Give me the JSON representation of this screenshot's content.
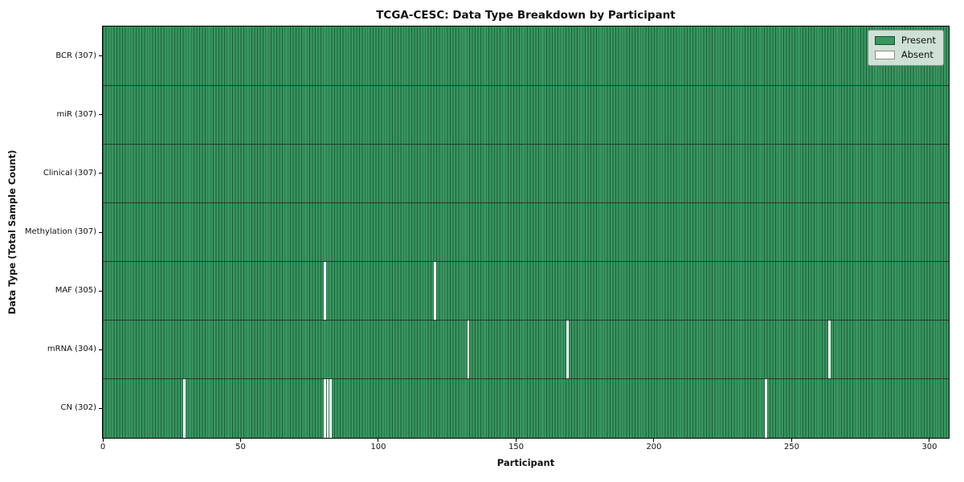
{
  "title": "TCGA-CESC: Data Type Breakdown by Participant",
  "axes": {
    "x_label": "Participant",
    "y_label": "Data Type (Total Sample Count)"
  },
  "legend": {
    "items": [
      {
        "label": "Present",
        "color": "#37975f"
      },
      {
        "label": "Absent",
        "color": "#ffffff"
      }
    ]
  },
  "chart_data": {
    "type": "heatmap",
    "title": "TCGA-CESC: Data Type Breakdown by Participant",
    "xlabel": "Participant",
    "ylabel": "Data Type (Total Sample Count)",
    "n_participants": 307,
    "xlim": [
      0,
      307
    ],
    "x_ticks": [
      0,
      50,
      100,
      150,
      200,
      250,
      300
    ],
    "legend_position": "upper right",
    "grid": false,
    "rows": [
      {
        "label": "BCR (307)",
        "name": "BCR",
        "total": 307,
        "absent_participants": []
      },
      {
        "label": "miR (307)",
        "name": "miR",
        "total": 307,
        "absent_participants": []
      },
      {
        "label": "Clinical (307)",
        "name": "Clinical",
        "total": 307,
        "absent_participants": []
      },
      {
        "label": "Methylation (307)",
        "name": "Methylation",
        "total": 307,
        "absent_participants": []
      },
      {
        "label": "MAF (305)",
        "name": "MAF",
        "total": 305,
        "absent_participants": [
          80,
          120
        ]
      },
      {
        "label": "mRNA (304)",
        "name": "mRNA",
        "total": 304,
        "absent_participants": [
          132,
          168,
          263
        ]
      },
      {
        "label": "CN (302)",
        "name": "CN",
        "total": 302,
        "absent_participants": [
          29,
          80,
          81,
          82,
          240
        ]
      }
    ],
    "colors": {
      "present": "#37975f",
      "absent": "#ffffff",
      "cell_edge": "#225c3c",
      "row_separator": "#26372b",
      "plot_border": "#000000"
    }
  }
}
